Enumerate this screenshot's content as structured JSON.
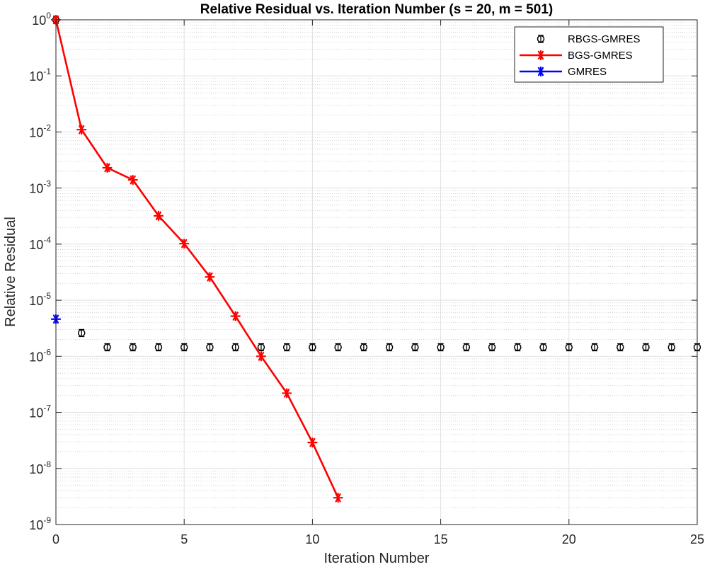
{
  "chart_data": {
    "type": "line",
    "title": "Relative Residual vs. Iteration Number (s = 20, m = 501)",
    "xlabel": "Iteration Number",
    "ylabel": "Relative Residual",
    "xlim": [
      0,
      25
    ],
    "ylim": [
      1e-09,
      1
    ],
    "yscale": "log",
    "grid": true,
    "minor_grid": true,
    "legend_position": "top-right",
    "x_ticks": [
      0,
      5,
      10,
      15,
      20,
      25
    ],
    "y_tick_exponents": [
      0,
      -1,
      -2,
      -3,
      -4,
      -5,
      -6,
      -7,
      -8,
      -9
    ],
    "y_tick_base": "10",
    "series": [
      {
        "name": "RBGS-GMRES",
        "color": "#000000",
        "style": "errorbar-circle",
        "x": [
          0,
          1,
          2,
          3,
          4,
          5,
          6,
          7,
          8,
          9,
          10,
          11,
          12,
          13,
          14,
          15,
          16,
          17,
          18,
          19,
          20,
          21,
          22,
          23,
          24,
          25
        ],
        "y": [
          1.0,
          2.6e-06,
          1.45e-06,
          1.45e-06,
          1.45e-06,
          1.45e-06,
          1.45e-06,
          1.45e-06,
          1.45e-06,
          1.45e-06,
          1.45e-06,
          1.45e-06,
          1.45e-06,
          1.45e-06,
          1.45e-06,
          1.45e-06,
          1.45e-06,
          1.45e-06,
          1.45e-06,
          1.45e-06,
          1.45e-06,
          1.45e-06,
          1.45e-06,
          1.45e-06,
          1.45e-06,
          1.45e-06
        ]
      },
      {
        "name": "BGS-GMRES",
        "color": "#ff0000",
        "style": "line-star",
        "x": [
          0,
          1,
          2,
          3,
          4,
          5,
          6,
          7,
          8,
          9,
          10,
          11
        ],
        "y": [
          1.0,
          0.011,
          0.0023,
          0.0014,
          0.00032,
          0.000102,
          2.6e-05,
          5.2e-06,
          1e-06,
          2.2e-07,
          2.9e-08,
          3e-09
        ]
      },
      {
        "name": "GMRES",
        "color": "#0000ff",
        "style": "star",
        "x": [
          0
        ],
        "y": [
          4.6e-06
        ]
      }
    ]
  }
}
